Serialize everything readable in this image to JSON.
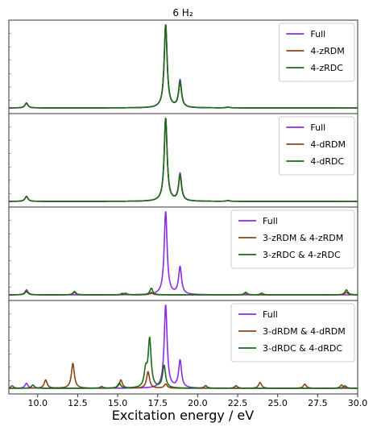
{
  "chart_data": {
    "type": "line",
    "title": "6 H₂",
    "xlabel": "Excitation energy / eV",
    "xlim": [
      8.2,
      30.0
    ],
    "xticks": [
      "10.0",
      "12.5",
      "15.0",
      "17.5",
      "20.0",
      "22.5",
      "25.0",
      "27.5",
      "30.0"
    ],
    "xtick_values": [
      10.0,
      12.5,
      15.0,
      17.5,
      20.0,
      22.5,
      25.0,
      27.5,
      30.0
    ],
    "grid": false,
    "legend_location": "upper right",
    "colors": {
      "full": "#8a2be2",
      "r": "#8b4513",
      "c": "#1a6b1a"
    },
    "panels": [
      {
        "legend": [
          "Full",
          "4-zRDM",
          "4-zRDC"
        ],
        "series": [
          {
            "name": "Full",
            "color": "#8a2be2",
            "peaks": [
              [
                9.3,
                0.06
              ],
              [
                18.0,
                1.0
              ],
              [
                18.9,
                0.33
              ],
              [
                21.9,
                0.01
              ]
            ]
          },
          {
            "name": "4-zRDM",
            "color": "#8b4513",
            "peaks": [
              [
                9.3,
                0.06
              ],
              [
                18.0,
                1.0
              ],
              [
                18.9,
                0.3
              ],
              [
                21.9,
                0.01
              ]
            ]
          },
          {
            "name": "4-zRDC",
            "color": "#1a6b1a",
            "peaks": [
              [
                9.3,
                0.06
              ],
              [
                18.0,
                1.0
              ],
              [
                18.9,
                0.31
              ],
              [
                21.9,
                0.01
              ]
            ]
          }
        ]
      },
      {
        "legend": [
          "Full",
          "4-dRDM",
          "4-dRDC"
        ],
        "series": [
          {
            "name": "Full",
            "color": "#8a2be2",
            "peaks": [
              [
                9.3,
                0.06
              ],
              [
                18.0,
                1.0
              ],
              [
                18.9,
                0.33
              ],
              [
                21.9,
                0.01
              ]
            ]
          },
          {
            "name": "4-dRDM",
            "color": "#8b4513",
            "peaks": [
              [
                9.3,
                0.06
              ],
              [
                18.0,
                1.0
              ],
              [
                18.9,
                0.3
              ],
              [
                21.9,
                0.01
              ]
            ]
          },
          {
            "name": "4-dRDC",
            "color": "#1a6b1a",
            "peaks": [
              [
                9.3,
                0.06
              ],
              [
                18.0,
                1.0
              ],
              [
                18.9,
                0.31
              ],
              [
                21.9,
                0.01
              ]
            ]
          }
        ]
      },
      {
        "legend": [
          "Full",
          "3-zRDM & 4-zRDM",
          "3-zRDC & 4-zRDC"
        ],
        "series": [
          {
            "name": "Full",
            "color": "#8a2be2",
            "peaks": [
              [
                9.3,
                0.06
              ],
              [
                18.0,
                1.0
              ],
              [
                18.9,
                0.33
              ]
            ]
          },
          {
            "name": "3-zRDM & 4-zRDM",
            "color": "#8b4513",
            "peaks": [
              [
                9.3,
                0.05
              ],
              [
                12.3,
                0.03
              ],
              [
                15.3,
                0.02
              ],
              [
                17.1,
                0.03
              ],
              [
                23.0,
                0.02
              ],
              [
                29.3,
                0.03
              ]
            ]
          },
          {
            "name": "3-zRDC & 4-zRDC",
            "color": "#1a6b1a",
            "peaks": [
              [
                9.3,
                0.04
              ],
              [
                12.3,
                0.04
              ],
              [
                15.5,
                0.02
              ],
              [
                17.1,
                0.08
              ],
              [
                23.0,
                0.03
              ],
              [
                24.0,
                0.02
              ],
              [
                29.3,
                0.06
              ]
            ]
          }
        ]
      },
      {
        "legend": [
          "Full",
          "3-dRDM & 4-dRDM",
          "3-dRDC & 4-dRDC"
        ],
        "series": [
          {
            "name": "Full",
            "color": "#8a2be2",
            "peaks": [
              [
                9.3,
                0.06
              ],
              [
                18.0,
                1.0
              ],
              [
                18.9,
                0.33
              ]
            ]
          },
          {
            "name": "3-dRDM & 4-dRDM",
            "color": "#8b4513",
            "peaks": [
              [
                8.4,
                0.03
              ],
              [
                10.5,
                0.1
              ],
              [
                12.2,
                0.3
              ],
              [
                15.2,
                0.1
              ],
              [
                16.9,
                0.2
              ],
              [
                18.0,
                0.05
              ],
              [
                23.9,
                0.07
              ],
              [
                26.7,
                0.05
              ],
              [
                29.0,
                0.04
              ]
            ]
          },
          {
            "name": "3-dRDC & 4-dRDC",
            "color": "#1a6b1a",
            "peaks": [
              [
                9.7,
                0.04
              ],
              [
                14.0,
                0.02
              ],
              [
                15.1,
                0.06
              ],
              [
                16.75,
                0.2
              ],
              [
                17.0,
                0.58
              ],
              [
                17.9,
                0.27
              ],
              [
                20.5,
                0.03
              ],
              [
                22.4,
                0.03
              ],
              [
                29.2,
                0.03
              ]
            ]
          }
        ]
      }
    ]
  }
}
